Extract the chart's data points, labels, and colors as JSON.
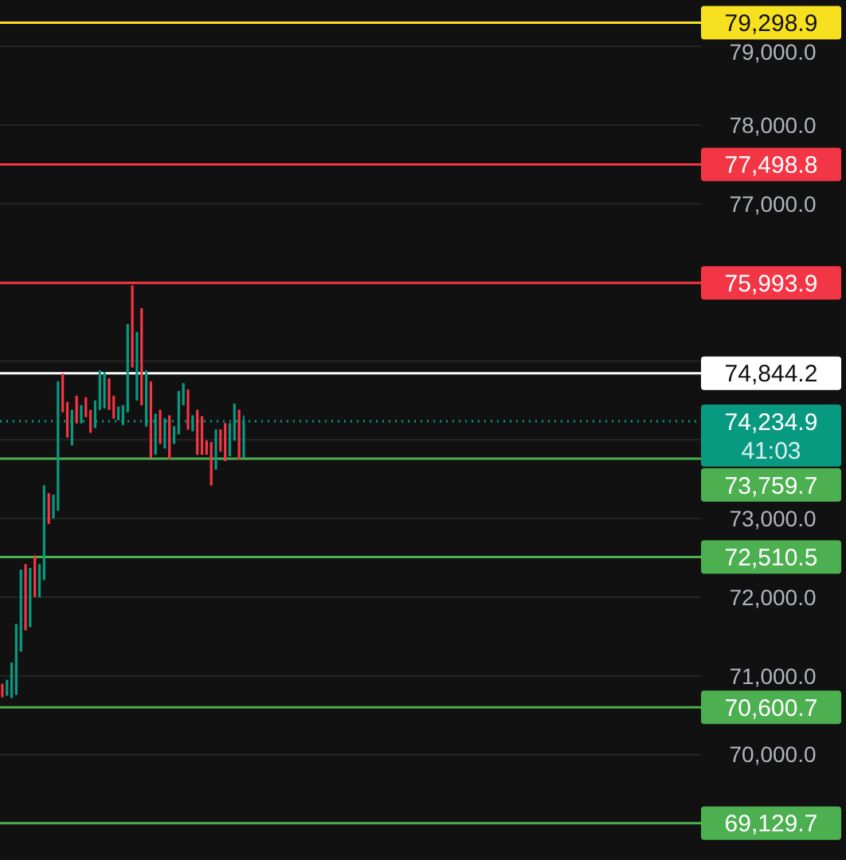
{
  "chart_data": {
    "type": "candlestick",
    "categories": [
      null,
      null,
      null,
      null,
      null,
      null,
      null,
      null,
      null,
      null,
      null,
      null,
      null,
      null,
      null,
      null,
      null,
      null,
      null,
      null,
      null,
      null,
      null,
      null,
      null,
      null,
      null,
      null,
      null,
      null,
      null,
      null,
      null,
      null,
      null,
      null,
      null,
      null,
      null,
      null,
      null,
      null,
      null,
      null,
      null,
      null,
      null,
      null,
      null,
      null,
      null,
      null,
      null,
      null,
      null,
      null,
      null,
      null,
      null,
      null,
      null,
      null,
      null,
      null,
      null,
      null,
      null,
      null,
      null,
      null,
      null,
      null,
      null,
      null,
      null,
      null,
      null,
      null,
      null,
      null,
      null,
      null,
      null,
      null,
      null,
      null,
      null,
      null,
      null,
      null,
      null,
      null,
      null,
      null,
      null,
      null,
      null,
      null,
      null,
      null,
      null,
      null,
      null,
      null,
      null,
      null,
      null,
      null,
      null,
      null,
      null,
      null,
      null,
      null,
      null,
      null,
      null,
      null,
      null,
      null,
      null,
      null,
      null,
      null,
      null,
      null,
      null,
      null,
      null,
      null,
      null,
      null,
      null,
      null,
      null,
      null,
      null,
      null,
      null,
      null,
      null,
      null,
      null,
      null,
      null,
      null,
      null,
      null,
      null,
      null,
      null
    ],
    "ohlc": [
      [
        70900,
        70900,
        70730,
        70730
      ],
      [
        70750,
        70950,
        70750,
        70950
      ],
      [
        70720,
        71170,
        70720,
        71170
      ],
      [
        70760,
        71660,
        70760,
        71660
      ],
      [
        71310,
        72350,
        71310,
        72350
      ],
      [
        72420,
        72420,
        71580,
        71580
      ],
      [
        71620,
        72370,
        71620,
        72370
      ],
      [
        72530,
        72530,
        72000,
        72000
      ],
      [
        72000,
        72420,
        72000,
        72420
      ],
      [
        72220,
        73420,
        72220,
        73420
      ],
      [
        73320,
        73320,
        72930,
        72930
      ],
      [
        73000,
        73300,
        73000,
        73300
      ],
      [
        73100,
        74740,
        73100,
        74740
      ],
      [
        74840,
        74840,
        74350,
        74350
      ],
      [
        74480,
        74480,
        74030,
        74030
      ],
      [
        73930,
        74380,
        73930,
        74380
      ],
      [
        74560,
        74560,
        74210,
        74210
      ],
      [
        74210,
        74440,
        74210,
        74440
      ],
      [
        74540,
        74540,
        74290,
        74290
      ],
      [
        74380,
        74380,
        74090,
        74090
      ],
      [
        74150,
        74500,
        74150,
        74500
      ],
      [
        74380,
        74880,
        74380,
        74880
      ],
      [
        74400,
        74860,
        74400,
        74860
      ],
      [
        74780,
        74780,
        74380,
        74380
      ],
      [
        74560,
        74560,
        74270,
        74270
      ],
      [
        74250,
        74420,
        74250,
        74420
      ],
      [
        74190,
        74440,
        74190,
        74440
      ],
      [
        74350,
        75470,
        74350,
        75470
      ],
      [
        75960,
        75960,
        74920,
        74920
      ],
      [
        74500,
        75370,
        74500,
        75370
      ],
      [
        75670,
        75670,
        74440,
        74440
      ],
      [
        74170,
        74880,
        74170,
        74880
      ],
      [
        74740,
        74740,
        73770,
        73770
      ],
      [
        73810,
        74330,
        73810,
        74330
      ],
      [
        74380,
        74380,
        73950,
        73950
      ],
      [
        73890,
        74270,
        73890,
        74270
      ],
      [
        74310,
        74310,
        73750,
        73750
      ],
      [
        73950,
        74170,
        73950,
        74170
      ],
      [
        74070,
        74620,
        74070,
        74620
      ],
      [
        74440,
        74720,
        74440,
        74720
      ],
      [
        74640,
        74640,
        74130,
        74130
      ],
      [
        74110,
        74310,
        74110,
        74310
      ],
      [
        74380,
        74380,
        73810,
        73810
      ],
      [
        74300,
        74300,
        73810,
        73810
      ],
      [
        73990,
        73990,
        73810,
        73810
      ],
      [
        73970,
        73970,
        73420,
        73420
      ],
      [
        73620,
        74130,
        73620,
        74130
      ],
      [
        74130,
        74130,
        73850,
        73850
      ],
      [
        74210,
        74210,
        73730,
        73730
      ],
      [
        73790,
        74210,
        73790,
        74210
      ],
      [
        73990,
        74460,
        73990,
        74460
      ],
      [
        74380,
        74380,
        73750,
        73750
      ],
      [
        73770,
        74310,
        73770,
        74234.9
      ],
      null,
      null,
      null,
      null,
      null,
      null,
      null,
      null,
      null,
      null,
      null,
      null,
      null,
      null,
      null,
      null,
      null,
      null,
      null,
      null,
      null,
      null,
      null,
      null,
      null,
      null,
      null,
      null,
      null,
      null,
      null,
      null,
      null,
      null,
      null,
      null,
      null,
      null,
      null,
      null,
      null,
      null,
      null,
      null,
      null,
      null,
      null,
      null,
      null,
      null,
      null,
      null,
      null,
      null,
      null,
      null,
      null,
      null,
      null,
      null,
      null,
      null,
      null,
      null,
      null,
      null,
      null,
      null,
      null,
      null,
      null,
      null,
      null,
      null,
      null,
      null,
      null,
      null,
      null,
      null,
      null,
      null,
      null,
      null,
      null,
      null,
      null,
      null,
      null,
      null,
      null,
      null,
      null,
      null,
      null,
      null,
      null,
      null
    ],
    "colors": [
      "#f23645",
      "#089981",
      "#089981",
      "#089981",
      "#089981",
      "#f23645",
      "#089981",
      "#f23645",
      "#089981",
      "#089981",
      "#f23645",
      "#089981",
      "#089981",
      "#f23645",
      "#f23645",
      "#089981",
      "#f23645",
      "#089981",
      "#f23645",
      "#f23645",
      "#089981",
      "#089981",
      "#089981",
      "#f23645",
      "#f23645",
      "#089981",
      "#089981",
      "#089981",
      "#f23645",
      "#089981",
      "#f23645",
      "#089981",
      "#f23645",
      "#089981",
      "#f23645",
      "#089981",
      "#f23645",
      "#089981",
      "#089981",
      "#089981",
      "#f23645",
      "#089981",
      "#f23645",
      "#f23645",
      "#f23645",
      "#f23645",
      "#089981",
      "#f23645",
      "#f23645",
      "#089981",
      "#089981",
      "#f23645",
      "#089981",
      null,
      null,
      null,
      null,
      null,
      null,
      null,
      null,
      null,
      null,
      null,
      null,
      null,
      null,
      null,
      null,
      null,
      null,
      null,
      null,
      null,
      null,
      null,
      null,
      null,
      null,
      null,
      null,
      null,
      null,
      null,
      null,
      null,
      null,
      null,
      null,
      null,
      null,
      null,
      null,
      null,
      null,
      null,
      null,
      null,
      null,
      null,
      null,
      null,
      null,
      null,
      null,
      null,
      null,
      null,
      null,
      null,
      null,
      null,
      null,
      null,
      null,
      null,
      null,
      null,
      null,
      null,
      null,
      null,
      null,
      null,
      null,
      null,
      null,
      null,
      null,
      null,
      null,
      null,
      null,
      null,
      null,
      null,
      null,
      null,
      null,
      null,
      null,
      null,
      null,
      null,
      null,
      null,
      null,
      null,
      null,
      null,
      null
    ],
    "ylim": [
      68661,
      79588
    ],
    "yticks": [
      {
        "value": 70000,
        "label": "70,000.0"
      },
      {
        "value": 71000,
        "label": "71,000.0"
      },
      {
        "value": 72000,
        "label": "72,000.0"
      },
      {
        "value": 73000,
        "label": "73,000.0"
      },
      {
        "value": 74000,
        "label": null
      },
      {
        "value": 75000,
        "label": null
      },
      {
        "value": 76000,
        "label": null
      },
      {
        "value": 77000,
        "label": "77,000.0"
      },
      {
        "value": 78000,
        "label": "78,000.0"
      },
      {
        "value": 79000,
        "label": "79,000.0"
      }
    ],
    "grid": "y",
    "tick_labels": "y",
    "ref_lines": [
      {
        "axis": "y",
        "value": 79298.9,
        "label": "79,298.9",
        "color": "#f7e01f"
      },
      {
        "axis": "y",
        "value": 77498.8,
        "label": "77,498.8",
        "color": "#f23645"
      },
      {
        "axis": "y",
        "value": 75993.9,
        "label": "75,993.9",
        "color": "#f23645"
      },
      {
        "axis": "y",
        "value": 74844.2,
        "label": "74,844.2",
        "color": "#ffffff"
      },
      {
        "axis": "y",
        "value": 74234.9,
        "label": "74,234.9",
        "color": "#089981",
        "line_style": "dotted"
      },
      {
        "axis": "y",
        "value": 73759.7,
        "label": "73,759.7",
        "color": "#4caf50"
      },
      {
        "axis": "y",
        "value": 72510.5,
        "label": "72,510.5",
        "color": "#4caf50"
      },
      {
        "axis": "y",
        "value": 70600.7,
        "label": "70,600.7",
        "color": "#4caf50"
      },
      {
        "axis": "y",
        "value": 69129.7,
        "label": "69,129.7",
        "color": "#4caf50"
      }
    ],
    "annotations": [
      "41:03"
    ]
  }
}
